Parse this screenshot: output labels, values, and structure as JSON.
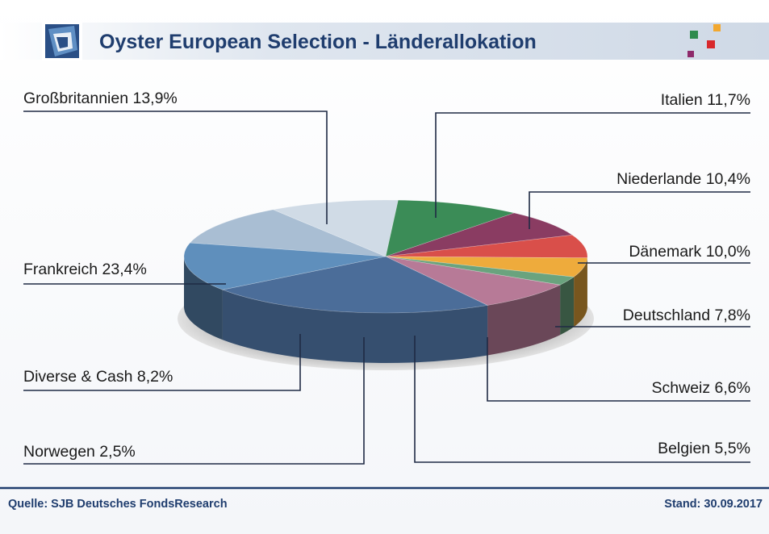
{
  "header": {
    "title": "Oyster European Selection - Länderallokation"
  },
  "footer": {
    "source": "Quelle: SJB Deutsches FondsResearch",
    "date": "Stand: 30.09.2017"
  },
  "colors": {
    "title": "#1f3d6e",
    "footer": "#1f3d6e",
    "header_band": "#d7dfea"
  },
  "chart_data": {
    "type": "pie",
    "title": "Oyster European Selection - Länderallokation",
    "legend": "none",
    "slices": [
      {
        "label": "Italien 11,7%",
        "value": 11.7,
        "color": "#a9bed3"
      },
      {
        "label": "Niederlande 10,4%",
        "value": 10.4,
        "color": "#d0dbe6"
      },
      {
        "label": "Dänemark 10,0%",
        "value": 10.0,
        "color": "#3b8c57"
      },
      {
        "label": "Deutschland 7,8%",
        "value": 7.8,
        "color": "#8a3c62"
      },
      {
        "label": "Schweiz 6,6%",
        "value": 6.6,
        "color": "#d94f4a"
      },
      {
        "label": "Belgien 5,5%",
        "value": 5.5,
        "color": "#eeab3c"
      },
      {
        "label": "Norwegen 2,5%",
        "value": 2.5,
        "color": "#6aa37e"
      },
      {
        "label": "Diverse & Cash 8,2%",
        "value": 8.2,
        "color": "#b77a97"
      },
      {
        "label": "Frankreich 23,4%",
        "value": 23.4,
        "color": "#4b6d99"
      },
      {
        "label": "Großbritannien 13,9%",
        "value": 13.9,
        "color": "#5f8fbc"
      }
    ]
  }
}
